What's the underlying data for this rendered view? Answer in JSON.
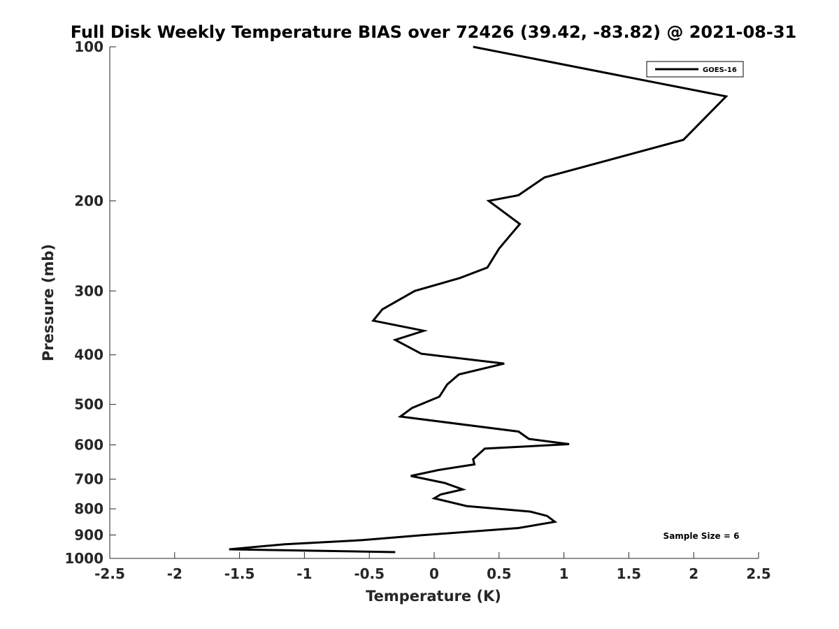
{
  "chart_data": {
    "type": "line",
    "title": "Full Disk Weekly Temperature BIAS over 72426 (39.42, -83.82) @ 2021-08-31",
    "xlabel": "Temperature (K)",
    "ylabel": "Pressure (mb)",
    "xlim": [
      -2.5,
      2.5
    ],
    "ylim": [
      100,
      1000
    ],
    "y_scale": "log",
    "y_reversed": true,
    "grid": false,
    "x_ticks": [
      "-2.5",
      "-2",
      "-1.5",
      "-1",
      "-0.5",
      "0",
      "0.5",
      "1",
      "1.5",
      "2",
      "2.5"
    ],
    "y_ticks": [
      "100",
      "200",
      "300",
      "400",
      "500",
      "600",
      "700",
      "800",
      "900",
      "1000"
    ],
    "legend_position": "top-right",
    "annotation": "Sample Size = 6",
    "series": [
      {
        "name": "GOES-16",
        "color": "#000000",
        "points": [
          [
            0.3,
            100
          ],
          [
            2.25,
            125
          ],
          [
            1.92,
            152
          ],
          [
            0.85,
            180
          ],
          [
            0.65,
            195
          ],
          [
            0.42,
            200
          ],
          [
            0.66,
            222
          ],
          [
            0.5,
            248
          ],
          [
            0.41,
            270
          ],
          [
            0.2,
            283
          ],
          [
            -0.15,
            300
          ],
          [
            -0.4,
            326
          ],
          [
            -0.47,
            343
          ],
          [
            -0.08,
            359
          ],
          [
            -0.3,
            374
          ],
          [
            -0.1,
            398
          ],
          [
            0.54,
            416
          ],
          [
            0.19,
            437
          ],
          [
            0.1,
            457
          ],
          [
            0.04,
            483
          ],
          [
            -0.17,
            508
          ],
          [
            -0.26,
            528
          ],
          [
            0.65,
            565
          ],
          [
            0.73,
            584
          ],
          [
            1.04,
            598
          ],
          [
            0.39,
            610
          ],
          [
            0.3,
            640
          ],
          [
            0.31,
            655
          ],
          [
            0.03,
            672
          ],
          [
            -0.18,
            690
          ],
          [
            0.08,
            712
          ],
          [
            0.22,
            733
          ],
          [
            0.05,
            750
          ],
          [
            0.0,
            763
          ],
          [
            0.25,
            790
          ],
          [
            0.74,
            810
          ],
          [
            0.87,
            826
          ],
          [
            0.93,
            848
          ],
          [
            0.65,
            872
          ],
          [
            -0.1,
            901
          ],
          [
            -0.55,
            921
          ],
          [
            -1.15,
            938
          ],
          [
            -1.58,
            960
          ],
          [
            -0.3,
            972
          ]
        ]
      }
    ]
  }
}
